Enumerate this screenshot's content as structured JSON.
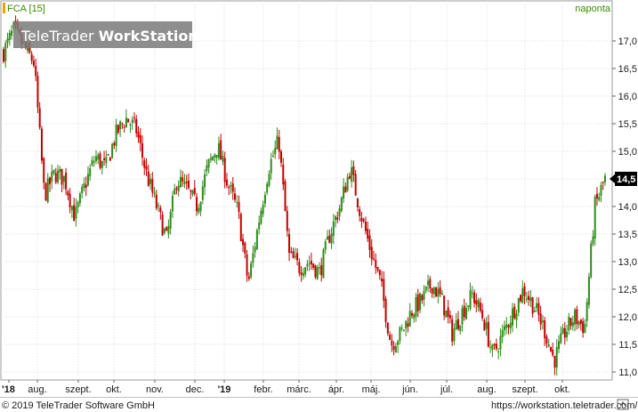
{
  "header": {
    "symbol": "FCA [15]",
    "interval": "naponta",
    "symbol_color": "#3a8a00",
    "interval_color": "#3a8a00"
  },
  "watermark": {
    "brand_light": "TeleTrader ",
    "brand_bold": "WorkStation"
  },
  "footer": {
    "copyright": "© 2019 TeleTrader Software GmbH",
    "url": "https://workstation.teletrader.com/"
  },
  "colors": {
    "up": "#2f8c1a",
    "down": "#c40000",
    "last_price_box": "#000000"
  },
  "chart_data": {
    "type": "candlestick",
    "title": "",
    "ylim": [
      10.8,
      17.5
    ],
    "y_ticks": [
      "11,0",
      "11,5",
      "12,0",
      "12,5",
      "13,0",
      "13,5",
      "14,0",
      "14,5",
      "15,0",
      "15,5",
      "16,0",
      "16,5",
      "17,0"
    ],
    "x_ticks": [
      "'18",
      "aug.",
      "szept.",
      "okt.",
      "nov.",
      "dec.",
      "'19",
      "febr.",
      "márc.",
      "ápr.",
      "máj.",
      "jún.",
      "júl.",
      "aug.",
      "szept.",
      "okt."
    ],
    "last_price_label": "14,5",
    "last_price": 14.5,
    "grid": true,
    "series": [
      {
        "values": [
          16.8,
          17.2,
          16.9,
          16.6,
          14.2,
          14.6,
          14.5,
          13.8,
          14.4,
          14.9,
          14.7,
          15.3,
          15.6,
          15.4,
          14.6,
          14.0,
          13.4,
          14.5,
          14.3,
          14.0,
          14.7,
          15.1,
          14.4,
          13.9,
          12.6,
          13.7,
          14.7,
          15.2,
          13.1,
          12.9,
          13.0,
          12.8,
          13.5,
          14.0,
          14.7,
          13.9,
          13.2,
          12.6,
          11.5,
          11.7,
          12.1,
          12.3,
          12.6,
          12.3,
          11.7,
          12.1,
          12.4,
          12.0,
          11.3,
          11.7,
          12.1,
          12.5,
          12.2,
          11.8,
          11.2,
          11.7,
          12.0,
          11.8,
          14.0,
          14.5
        ]
      }
    ]
  }
}
